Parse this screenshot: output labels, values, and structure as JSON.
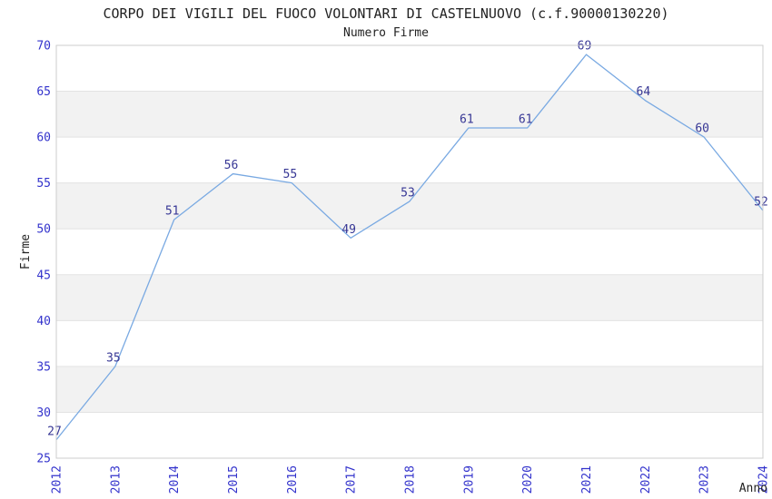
{
  "page": {
    "title": "CORPO DEI VIGILI DEL FUOCO VOLONTARI DI CASTELNUOVO (c.f.90000130220)",
    "subtitle": "Numero Firme"
  },
  "chart_data": {
    "type": "line",
    "title": "CORPO DEI VIGILI DEL FUOCO VOLONTARI DI CASTELNUOVO (c.f.90000130220)",
    "subtitle": "Numero Firme",
    "xlabel": "Anno",
    "ylabel": "Firme",
    "categories": [
      "2012",
      "2013",
      "2014",
      "2015",
      "2016",
      "2017",
      "2018",
      "2019",
      "2020",
      "2021",
      "2022",
      "2023",
      "2024"
    ],
    "values": [
      27,
      35,
      51,
      56,
      55,
      49,
      53,
      61,
      61,
      69,
      64,
      60,
      52
    ],
    "ylim": [
      25,
      70
    ],
    "ytick_step": 5,
    "yticks": [
      25,
      30,
      35,
      40,
      45,
      50,
      55,
      60,
      65,
      70
    ],
    "point_labels_visible": true,
    "markers": "none",
    "legend": "none",
    "grid": "horizontal-bands-alternating",
    "x_tick_rotation_deg": -90
  },
  "style": {
    "line_color": "#79a9e2",
    "tick_label_color": "#3333cc",
    "point_label_color": "#373795",
    "text_color": "#222222",
    "band_color": "#f2f2f2",
    "gridline_color": "#e3e3e3",
    "border_color": "#cccccc",
    "background_color": "#ffffff"
  }
}
